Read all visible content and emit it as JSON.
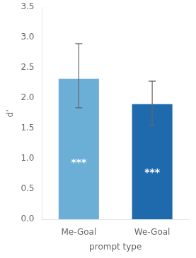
{
  "chart_data": {
    "type": "bar",
    "categories": [
      "Me-Goal",
      "We-Goal"
    ],
    "values": [
      2.32,
      1.9
    ],
    "errors_upper": [
      0.58,
      0.38
    ],
    "errors_lower": [
      0.48,
      0.35
    ],
    "colors": [
      "#6baed6",
      "#1f6aad"
    ],
    "xlabel": "prompt type",
    "ylabel": "d’",
    "ylim": [
      0,
      3.5
    ],
    "yticks": [
      {
        "value": 0,
        "label": "0.0"
      },
      0.5,
      {
        "value": 1,
        "label": "1.0"
      },
      1.5,
      {
        "value": 2,
        "label": "2.0"
      },
      2.5,
      {
        "value": 3,
        "label": "3.0"
      },
      3.5
    ],
    "annotations": [
      {
        "x": "Me-Goal",
        "text": "***"
      },
      {
        "x": "We-Goal",
        "text": "***"
      }
    ],
    "grid": false
  }
}
